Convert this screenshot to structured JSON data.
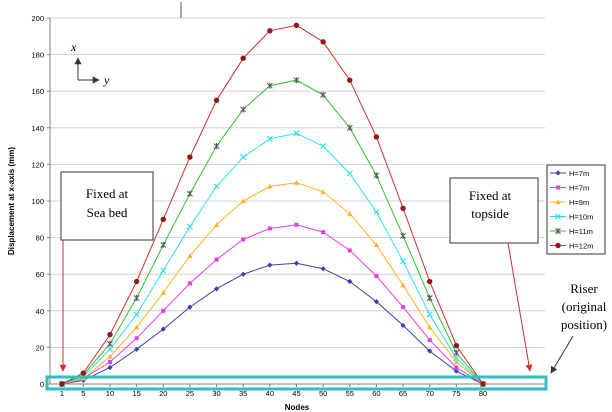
{
  "chart_data": {
    "type": "line",
    "title": "",
    "xlabel": "Nodes",
    "ylabel": "Displacement at x-axis (mm)",
    "x": [
      1,
      5,
      10,
      15,
      20,
      25,
      30,
      35,
      40,
      45,
      50,
      55,
      60,
      65,
      70,
      75,
      80
    ],
    "x_ticks": [
      "1",
      "5",
      "10",
      "15",
      "20",
      "25",
      "30",
      "35",
      "40",
      "45",
      "50",
      "55",
      "60",
      "65",
      "70",
      "75",
      "80"
    ],
    "ylim": [
      0,
      200
    ],
    "y_ticks": [
      0,
      20,
      40,
      60,
      80,
      100,
      120,
      140,
      160,
      180,
      200
    ],
    "grid": "horizontal",
    "legend_position": "right",
    "series": [
      {
        "name": "H=7m",
        "color": "#3f3fb0",
        "marker": "diamond",
        "values": [
          0,
          2,
          9,
          19,
          30,
          42,
          52,
          60,
          65,
          66,
          63,
          56,
          45,
          32,
          18,
          7,
          0
        ]
      },
      {
        "name": "H=7m",
        "color": "#e040e0",
        "marker": "square",
        "values": [
          0,
          3,
          12,
          25,
          40,
          55,
          68,
          79,
          85,
          87,
          83,
          73,
          59,
          42,
          24,
          9,
          0
        ]
      },
      {
        "name": "H=9m",
        "color": "#ffb020",
        "marker": "triangle",
        "values": [
          0,
          3,
          15,
          31,
          50,
          70,
          87,
          100,
          108,
          110,
          105,
          93,
          76,
          54,
          31,
          12,
          0
        ]
      },
      {
        "name": "H=10m",
        "color": "#30e0e0",
        "marker": "x",
        "values": [
          0,
          4,
          19,
          38,
          62,
          86,
          108,
          124,
          134,
          137,
          130,
          115,
          94,
          67,
          38,
          14,
          0
        ]
      },
      {
        "name": "H=11m",
        "color": "#30c030",
        "marker": "star",
        "values": [
          0,
          5,
          22,
          47,
          76,
          104,
          130,
          150,
          163,
          166,
          158,
          140,
          114,
          81,
          47,
          17,
          0
        ]
      },
      {
        "name": "H=12m",
        "color": "#d03030",
        "marker": "circle",
        "values": [
          0,
          6,
          27,
          56,
          90,
          124,
          155,
          178,
          193,
          196,
          187,
          166,
          135,
          96,
          56,
          21,
          0
        ]
      }
    ],
    "annotations": {
      "seabed": [
        "Fixed at",
        "Sea bed"
      ],
      "topside": [
        "Fixed at",
        "topside"
      ],
      "riser": [
        "Riser",
        "(original",
        "position)"
      ],
      "axis_x": "x",
      "axis_y": "y"
    },
    "colors": {
      "arrow": "#d03030",
      "riser_box": "#30c0c0",
      "grid": "#c8c8c8",
      "axis": "#808080"
    }
  }
}
